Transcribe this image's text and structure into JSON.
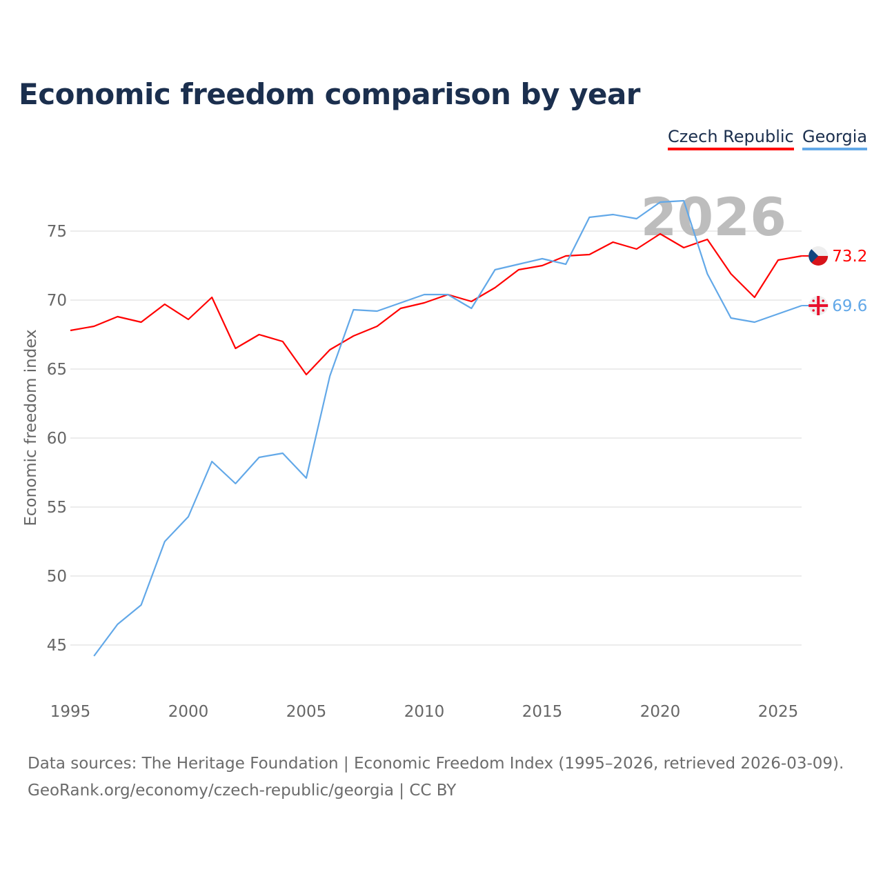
{
  "chart_data": {
    "type": "line",
    "title": "Economic freedom comparison by year",
    "xlabel": "",
    "ylabel": "Economic freedom index",
    "xlim": [
      1995,
      2026
    ],
    "ylim": [
      41,
      79
    ],
    "xticks": [
      1995,
      2000,
      2005,
      2010,
      2015,
      2020,
      2025
    ],
    "yticks": [
      45,
      50,
      55,
      60,
      65,
      70,
      75
    ],
    "grid": true,
    "legend": "top-right",
    "year_watermark": "2026",
    "series": [
      {
        "name": "Czech Republic",
        "color": "#ff0000",
        "end_label": "73.2",
        "x": [
          1995,
          1996,
          1997,
          1998,
          1999,
          2000,
          2001,
          2002,
          2003,
          2004,
          2005,
          2006,
          2007,
          2008,
          2009,
          2010,
          2011,
          2012,
          2013,
          2014,
          2015,
          2016,
          2017,
          2018,
          2019,
          2020,
          2021,
          2022,
          2023,
          2024,
          2025,
          2026
        ],
        "values": [
          67.8,
          68.1,
          68.8,
          68.4,
          69.7,
          68.6,
          70.2,
          66.5,
          67.5,
          67.0,
          64.6,
          66.4,
          67.4,
          68.1,
          69.4,
          69.8,
          70.4,
          69.9,
          70.9,
          72.2,
          72.5,
          73.2,
          73.3,
          74.2,
          73.7,
          74.8,
          73.8,
          74.4,
          71.9,
          70.2,
          72.9,
          73.2
        ]
      },
      {
        "name": "Georgia",
        "color": "#62a8e8",
        "end_label": "69.6",
        "x": [
          1996,
          1997,
          1998,
          1999,
          2000,
          2001,
          2002,
          2003,
          2004,
          2005,
          2006,
          2007,
          2008,
          2009,
          2010,
          2011,
          2012,
          2013,
          2014,
          2015,
          2016,
          2017,
          2018,
          2019,
          2020,
          2021,
          2022,
          2023,
          2024,
          2025,
          2026
        ],
        "values": [
          44.2,
          46.5,
          47.9,
          52.5,
          54.3,
          58.3,
          56.7,
          58.6,
          58.9,
          57.1,
          64.5,
          69.3,
          69.2,
          69.8,
          70.4,
          70.4,
          69.4,
          72.2,
          72.6,
          73.0,
          72.6,
          76.0,
          76.2,
          75.9,
          77.1,
          77.2,
          71.9,
          68.7,
          68.4,
          69.0,
          69.6
        ]
      }
    ]
  },
  "footer": {
    "line1": "Data sources: The Heritage Foundation | Economic Freedom Index (1995–2026, retrieved 2026-03-09).",
    "line2": "GeoRank.org/economy/czech-republic/georgia | CC BY"
  }
}
